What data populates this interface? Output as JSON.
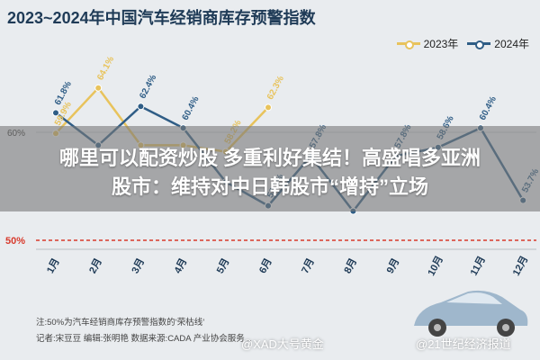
{
  "headline": {
    "line1": "哪里可以配资炒股 多重利好集结！高盛唱多亚洲",
    "line2": "股市：维持对中日韩股市“增持”立场"
  },
  "footer": {
    "note": "注:50%为汽车经销商库存预警指数的‘荣枯线’",
    "credits": "记者:宋豆豆    编辑:张明艳    数据来源:CADA 产业协会服务..."
  },
  "watermarks": {
    "left": "@XAD大号黄金",
    "right": "@21世纪经济报道"
  },
  "colors": {
    "series_2023": "#e8c35c",
    "series_2024": "#2f5d86",
    "title": "#1f3b57",
    "axis_y_label": "#d83a2c"
  },
  "chart_data": {
    "type": "line",
    "title": "2023~2024年中国汽车经销商库存预警指数",
    "categories": [
      "1月",
      "2月",
      "3月",
      "4月",
      "5月",
      "6月",
      "7月",
      "8月",
      "9月",
      "10月",
      "11月",
      "12月"
    ],
    "y_ticks": [
      "60%",
      "50%"
    ],
    "ylim": [
      50,
      65
    ],
    "series": [
      {
        "name": "2023年",
        "values": [
          59.9,
          64.1,
          58.8,
          58.8,
          58.2,
          62.3,
          null,
          null,
          null,
          null,
          null,
          null
        ],
        "labels": [
          "59.9%",
          "64.1%",
          "",
          "",
          "58.2%",
          "62.3%",
          "",
          "",
          "",
          "",
          "",
          ""
        ]
      },
      {
        "name": "2024年",
        "values": [
          61.8,
          58.8,
          62.4,
          60.4,
          55.4,
          53.2,
          57.8,
          52.7,
          57.8,
          58.6,
          60.4,
          53.7
        ],
        "labels": [
          "61.8%",
          "",
          "62.4%",
          "60.4%",
          "",
          "53.2%",
          "57.8%",
          "",
          "57.8%",
          "58.6%",
          "60.4%",
          "53.7%"
        ]
      }
    ],
    "grid": true,
    "legend_position": "top-right"
  }
}
